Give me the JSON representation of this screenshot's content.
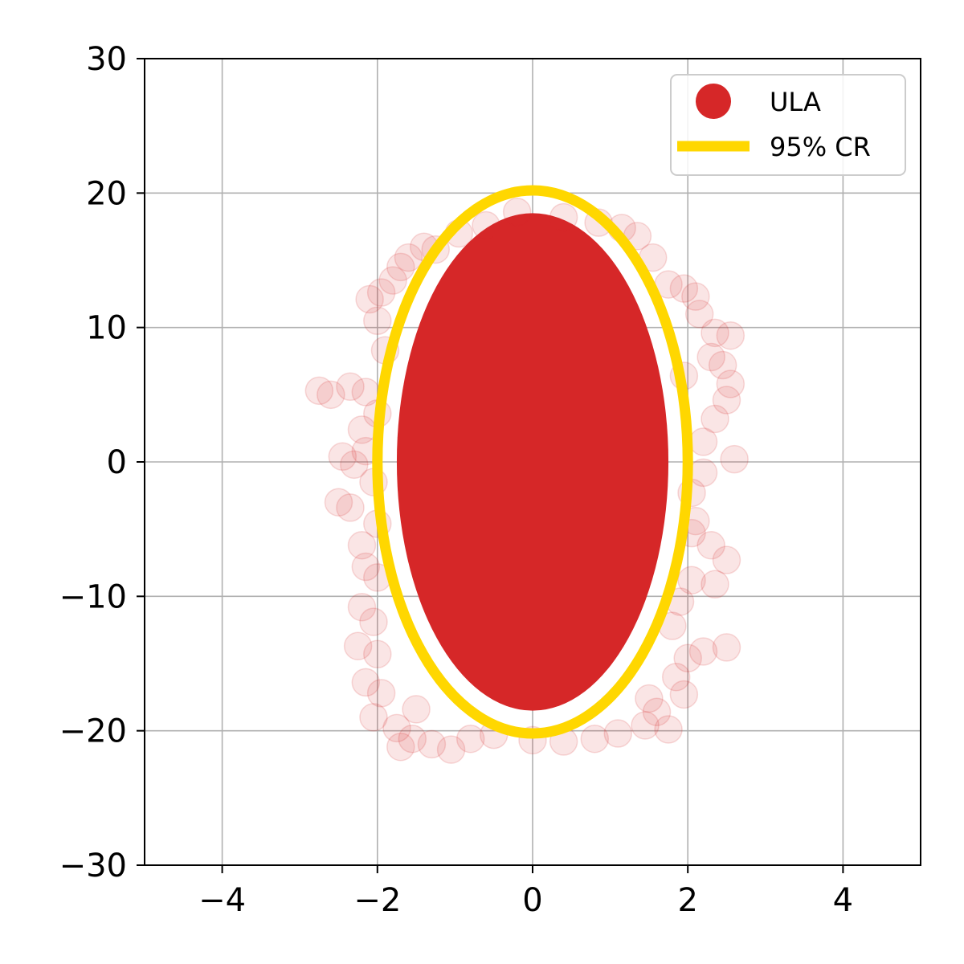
{
  "chart_data": {
    "type": "scatter",
    "title": "",
    "xlabel": "",
    "ylabel": "",
    "xlim": [
      -5,
      5
    ],
    "ylim": [
      -30,
      30
    ],
    "grid": true,
    "legend_position": "top-right",
    "x_ticks": [
      {
        "value": -4,
        "label": "−4"
      },
      {
        "value": -2,
        "label": "−2"
      },
      {
        "value": 0,
        "label": "0"
      },
      {
        "value": 2,
        "label": "2"
      },
      {
        "value": 4,
        "label": "4"
      }
    ],
    "y_ticks": [
      {
        "value": -30,
        "label": "−30"
      },
      {
        "value": -20,
        "label": "−20"
      },
      {
        "value": -10,
        "label": "−10"
      },
      {
        "value": 0,
        "label": "0"
      },
      {
        "value": 10,
        "label": "10"
      },
      {
        "value": 20,
        "label": "20"
      },
      {
        "value": 30,
        "label": "30"
      }
    ],
    "series": [
      {
        "name": "ULA",
        "kind": "scatter",
        "color": "#d62728",
        "opacity": 0.12,
        "dense_core": {
          "center": [
            0,
            0
          ],
          "semi_axis_x": 1.75,
          "semi_axis_y": 18.5
        },
        "points": [
          [
            -2.75,
            5.3
          ],
          [
            -2.6,
            5.0
          ],
          [
            -2.35,
            5.6
          ],
          [
            -2.15,
            5.2
          ],
          [
            -2.45,
            0.4
          ],
          [
            -2.3,
            -0.2
          ],
          [
            -2.5,
            -3.0
          ],
          [
            -2.35,
            -3.4
          ],
          [
            -2.15,
            0.8
          ],
          [
            -2.05,
            -1.5
          ],
          [
            -2.1,
            12.1
          ],
          [
            -2.0,
            10.5
          ],
          [
            -1.95,
            12.6
          ],
          [
            -1.8,
            13.5
          ],
          [
            -1.7,
            14.5
          ],
          [
            -1.6,
            15.2
          ],
          [
            -1.4,
            16.0
          ],
          [
            -2.15,
            -7.8
          ],
          [
            -2.0,
            -8.6
          ],
          [
            -2.2,
            -10.8
          ],
          [
            -2.05,
            -11.9
          ],
          [
            -2.25,
            -13.7
          ],
          [
            -2.0,
            -14.3
          ],
          [
            -2.15,
            -16.4
          ],
          [
            -1.95,
            -17.2
          ],
          [
            -2.05,
            -19.0
          ],
          [
            -1.75,
            -19.8
          ],
          [
            -1.7,
            -21.2
          ],
          [
            -1.55,
            -20.6
          ],
          [
            -1.3,
            -21.0
          ],
          [
            -1.05,
            -21.4
          ],
          [
            -0.8,
            -20.6
          ],
          [
            -0.5,
            -20.3
          ],
          [
            0.0,
            -20.7
          ],
          [
            0.4,
            -20.8
          ],
          [
            0.8,
            -20.6
          ],
          [
            1.1,
            -20.2
          ],
          [
            1.45,
            -19.6
          ],
          [
            1.75,
            -19.9
          ],
          [
            1.6,
            -18.6
          ],
          [
            1.95,
            -17.3
          ],
          [
            1.85,
            -16.0
          ],
          [
            2.0,
            -14.6
          ],
          [
            2.2,
            -14.1
          ],
          [
            2.5,
            -13.8
          ],
          [
            1.8,
            -12.2
          ],
          [
            1.9,
            -10.4
          ],
          [
            2.05,
            -8.8
          ],
          [
            2.35,
            -9.1
          ],
          [
            2.5,
            -7.3
          ],
          [
            2.3,
            -6.2
          ],
          [
            2.1,
            -4.4
          ],
          [
            2.05,
            -2.3
          ],
          [
            2.2,
            -0.8
          ],
          [
            2.6,
            0.2
          ],
          [
            2.2,
            1.5
          ],
          [
            2.35,
            3.2
          ],
          [
            2.5,
            4.6
          ],
          [
            2.55,
            5.8
          ],
          [
            2.45,
            7.2
          ],
          [
            2.3,
            7.8
          ],
          [
            2.55,
            9.4
          ],
          [
            2.35,
            9.6
          ],
          [
            2.15,
            11.0
          ],
          [
            2.1,
            12.3
          ],
          [
            1.95,
            12.9
          ],
          [
            1.75,
            13.2
          ],
          [
            1.55,
            15.2
          ],
          [
            1.35,
            16.8
          ],
          [
            1.15,
            17.4
          ],
          [
            0.85,
            17.8
          ],
          [
            0.4,
            18.2
          ],
          [
            -0.2,
            18.6
          ],
          [
            -0.6,
            17.6
          ],
          [
            -0.95,
            17.0
          ],
          [
            -1.25,
            15.8
          ],
          [
            -2.0,
            3.6
          ],
          [
            -2.2,
            2.4
          ],
          [
            -2.0,
            -4.6
          ],
          [
            -2.2,
            -6.2
          ],
          [
            1.95,
            6.4
          ],
          [
            2.05,
            -5.3
          ],
          [
            -1.9,
            8.3
          ],
          [
            1.5,
            -17.6
          ],
          [
            -1.5,
            -18.4
          ]
        ]
      },
      {
        "name": "95% CR",
        "kind": "ellipse",
        "color": "#ffd700",
        "center": [
          0,
          0
        ],
        "semi_axis_x": 2.0,
        "semi_axis_y": 20.2
      }
    ]
  },
  "legend": {
    "items": [
      {
        "label": "ULA"
      },
      {
        "label": "95% CR"
      }
    ]
  }
}
